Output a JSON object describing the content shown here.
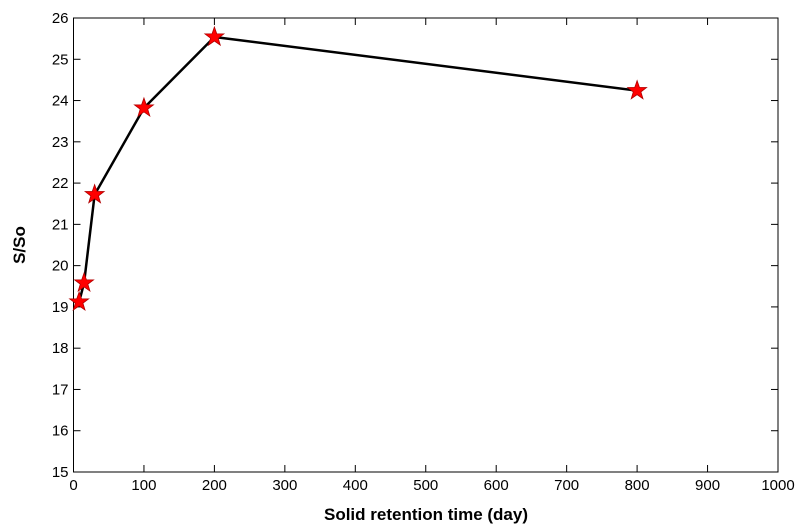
{
  "chart_data": {
    "type": "line",
    "xlabel": "Solid retention time (day)",
    "ylabel": "S/So",
    "x": [
      8,
      15,
      30,
      100,
      200,
      800
    ],
    "values": [
      19.12,
      19.58,
      21.72,
      23.82,
      25.54,
      24.24
    ],
    "color": "#000000",
    "marker": "pentagram",
    "marker_color": "#ff0000",
    "xlim": [
      0,
      1000
    ],
    "xticks": [
      0,
      100,
      200,
      300,
      400,
      500,
      600,
      700,
      800,
      900,
      1000
    ],
    "ylim": [
      15,
      26
    ],
    "yticks": [
      15,
      16,
      17,
      18,
      19,
      20,
      21,
      22,
      23,
      24,
      25,
      26
    ],
    "grid": false
  }
}
